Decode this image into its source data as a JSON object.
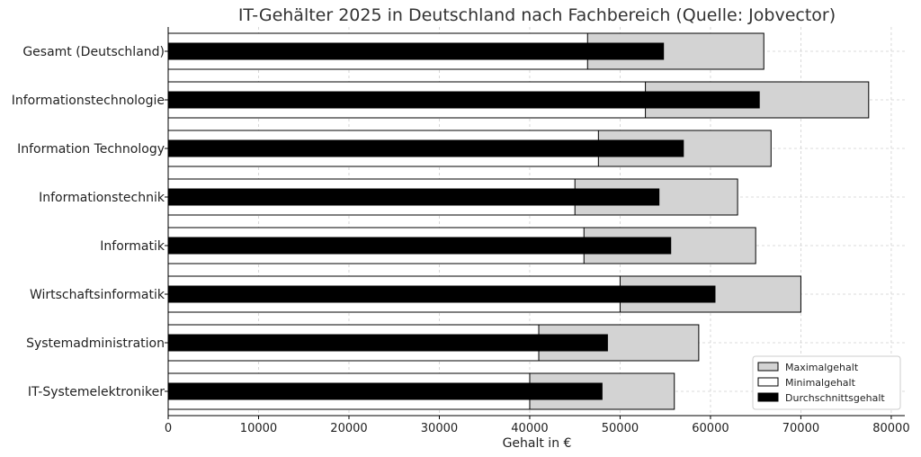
{
  "chart_data": {
    "type": "bar",
    "orientation": "horizontal",
    "title": "IT-Gehälter 2025 in Deutschland nach Fachbereich (Quelle: Jobvector)",
    "xlabel": "Gehalt in €",
    "ylabel": "",
    "xlim": [
      0,
      81500
    ],
    "x_ticks": [
      0,
      10000,
      20000,
      30000,
      40000,
      50000,
      60000,
      70000,
      80000
    ],
    "grid": true,
    "legend_position": "bottom-right",
    "categories": [
      "Gesamt (Deutschland)",
      "Informationstechnologie",
      "Information Technology",
      "Informationstechnik",
      "Informatik",
      "Wirtschaftsinformatik",
      "Systemadministration",
      "IT-Systemelektroniker"
    ],
    "series": [
      {
        "name": "Maximalgehalt",
        "color": "#d3d3d3",
        "values": [
          65900,
          77500,
          66700,
          63000,
          65000,
          70000,
          58700,
          56000
        ]
      },
      {
        "name": "Minimalgehalt",
        "color": "#ffffff",
        "values": [
          46400,
          52800,
          47600,
          45000,
          46000,
          50000,
          41000,
          40000
        ]
      },
      {
        "name": "Durchschnittsgehalt",
        "color": "#000000",
        "values": [
          54800,
          65400,
          57000,
          54300,
          55600,
          60500,
          48600,
          48000
        ]
      }
    ]
  }
}
